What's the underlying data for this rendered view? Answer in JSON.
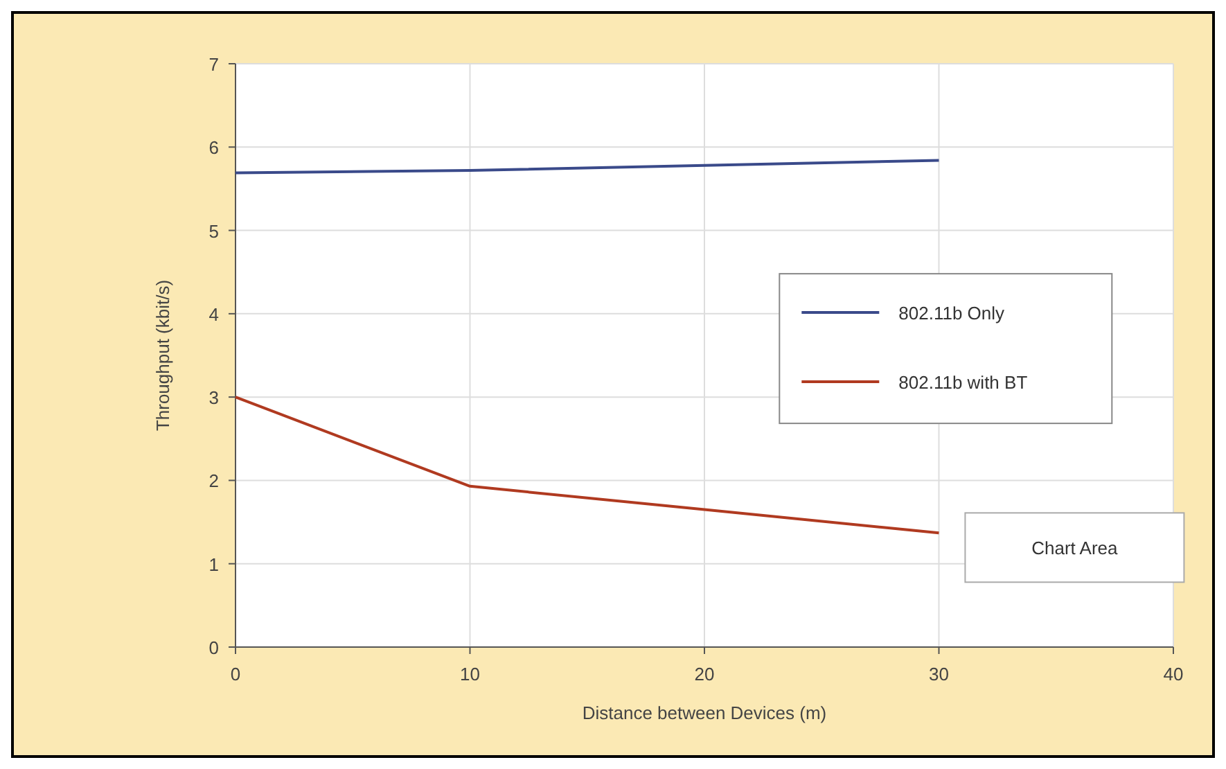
{
  "chart_data": {
    "type": "line",
    "xlabel": "Distance between Devices (m)",
    "ylabel": "Throughput (kbit/s)",
    "x": [
      0,
      10,
      20,
      30
    ],
    "series": [
      {
        "name": "802.11b Only",
        "color": "#3a4a8a",
        "values": [
          5.69,
          5.72,
          5.78,
          5.84
        ]
      },
      {
        "name": "802.11b with BT",
        "color": "#b03a20",
        "values": [
          3.0,
          1.93,
          1.65,
          1.37
        ]
      }
    ],
    "xlim": [
      0,
      40
    ],
    "xticks": [
      0,
      10,
      20,
      30,
      40
    ],
    "ylim": [
      0,
      7
    ],
    "yticks": [
      0,
      1,
      2,
      3,
      4,
      5,
      6,
      7
    ],
    "grid": true,
    "legend": "right",
    "marker": "none",
    "line_style": "solid",
    "annotations": [
      "Chart Area"
    ]
  }
}
